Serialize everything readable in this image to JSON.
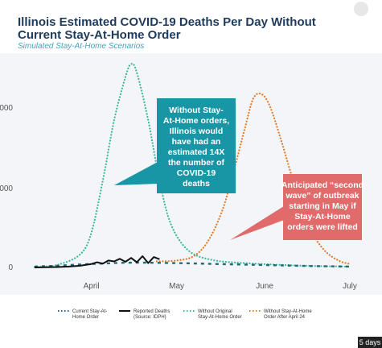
{
  "header": {
    "title": "Illinois Estimated COVID-19 Deaths Per Day Without Current Stay-At-Home Order",
    "subtitle": "Simulated Stay-At-Home Scenarios"
  },
  "overlay": {
    "time_badge": "5 days"
  },
  "callouts": {
    "teal": [
      "Without Stay-",
      "At-Home orders,",
      "Illinois would",
      "have had an",
      "estimated 14X",
      "the number of",
      "COVID-19",
      "deaths"
    ],
    "red": [
      "Anticipated “second",
      "wave” of outbreak",
      "starting in May if",
      "Stay-At-Home",
      "orders were lifted"
    ]
  },
  "chart_data": {
    "type": "line",
    "title": "Illinois Estimated COVID-19 Deaths Per Day Without Current Stay-At-Home Order",
    "subtitle": "Simulated Stay-At-Home Scenarios",
    "xlabel": "",
    "ylabel": "",
    "x_ticks": [
      "April",
      "May",
      "June",
      "July"
    ],
    "y_ticks": [
      "0",
      "000",
      "000"
    ],
    "ylim": [
      0,
      2400
    ],
    "grid": false,
    "legend_position": "bottom",
    "colors": {
      "current": "#1f6b7a",
      "reported": "#111111",
      "without_original": "#3cb89a",
      "after_april24": "#e07b2a",
      "callout_teal": "#1996a5",
      "callout_red": "#e16b6b"
    },
    "series": [
      {
        "name": "Current Stay-At-Home Order",
        "key": "current",
        "style": "dotted",
        "x": [
          "03-12",
          "03-20",
          "04-01",
          "04-15",
          "05-01",
          "05-15",
          "06-01",
          "06-15",
          "07-01"
        ],
        "y": [
          10,
          20,
          40,
          55,
          50,
          40,
          28,
          18,
          10
        ]
      },
      {
        "name": "Reported Deaths (Source: IDPH)",
        "key": "reported",
        "style": "solid",
        "x": [
          "03-12",
          "03-16",
          "03-20",
          "03-24",
          "03-28",
          "04-01",
          "04-03",
          "04-05",
          "04-07",
          "04-09",
          "04-11",
          "04-13",
          "04-15",
          "04-17",
          "04-19",
          "04-21",
          "04-23",
          "04-25"
        ],
        "y": [
          0,
          2,
          5,
          10,
          20,
          40,
          60,
          45,
          80,
          70,
          100,
          65,
          110,
          60,
          130,
          50,
          120,
          95
        ]
      },
      {
        "name": "Without Original Stay-At-Home Order",
        "key": "without_original",
        "style": "dotted",
        "x": [
          "03-12",
          "03-20",
          "03-28",
          "04-01",
          "04-05",
          "04-09",
          "04-13",
          "04-15",
          "04-17",
          "04-21",
          "04-25",
          "04-29",
          "05-05",
          "05-13",
          "05-25",
          "06-15",
          "07-01"
        ],
        "y": [
          5,
          30,
          150,
          400,
          1000,
          1700,
          2200,
          2350,
          2250,
          1700,
          1000,
          500,
          200,
          90,
          50,
          20,
          10
        ]
      },
      {
        "name": "Without Stay-At-Home Order After April 24",
        "key": "after_april24",
        "style": "dotted",
        "x": [
          "04-24",
          "05-01",
          "05-07",
          "05-12",
          "05-17",
          "05-21",
          "05-25",
          "05-28",
          "05-31",
          "06-03",
          "06-07",
          "06-12",
          "06-17",
          "06-22",
          "06-27",
          "07-01"
        ],
        "y": [
          70,
          80,
          130,
          300,
          650,
          1100,
          1600,
          1950,
          2000,
          1850,
          1450,
          900,
          450,
          200,
          80,
          40
        ]
      }
    ],
    "annotations": [
      "Without Stay-At-Home orders, Illinois would have had an estimated 14X the number of COVID-19 deaths",
      "Anticipated “second wave” of outbreak starting in May if Stay-At-Home orders were lifted"
    ]
  }
}
